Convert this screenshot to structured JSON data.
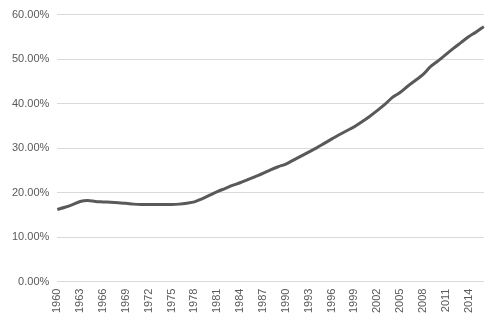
{
  "chart_data": {
    "type": "line",
    "categories": [
      "1960",
      null,
      null,
      "1963",
      null,
      null,
      "1966",
      null,
      null,
      "1969",
      null,
      null,
      "1972",
      null,
      null,
      "1975",
      null,
      null,
      "1978",
      null,
      null,
      "1981",
      null,
      null,
      "1984",
      null,
      null,
      "1987",
      null,
      null,
      "1990",
      null,
      null,
      "1993",
      null,
      null,
      "1996",
      null,
      null,
      "1999",
      null,
      null,
      "2002",
      null,
      null,
      "2005",
      null,
      null,
      "2008",
      null,
      null,
      "2011",
      null,
      null,
      "2014",
      null,
      null
    ],
    "values": [
      16.2,
      16.7,
      17.3,
      18.0,
      18.2,
      18.0,
      17.9,
      17.8,
      17.7,
      17.6,
      17.4,
      17.3,
      17.3,
      17.3,
      17.3,
      17.3,
      17.4,
      17.6,
      17.9,
      18.6,
      19.4,
      20.2,
      20.9,
      21.6,
      22.2,
      22.9,
      23.6,
      24.3,
      25.1,
      25.8,
      26.4,
      27.3,
      28.2,
      29.1,
      30.0,
      31.0,
      32.0,
      33.0,
      33.9,
      34.8,
      35.9,
      37.1,
      38.4,
      39.8,
      41.4,
      42.5,
      43.9,
      45.2,
      46.5,
      48.3,
      49.6,
      51.0,
      52.4,
      53.7,
      55.0,
      56.1,
      57.3
    ],
    "color": "#595959",
    "ylim": [
      0,
      60
    ],
    "yticks": [
      {
        "value": 0,
        "label": "0.00%"
      },
      {
        "value": 10,
        "label": "10.00%"
      },
      {
        "value": 20,
        "label": "20.00%"
      },
      {
        "value": 30,
        "label": "30.00%"
      },
      {
        "value": 40,
        "label": "40.00%"
      },
      {
        "value": 50,
        "label": "50.00%"
      },
      {
        "value": 60,
        "label": "60.00%"
      }
    ],
    "grid": true
  }
}
